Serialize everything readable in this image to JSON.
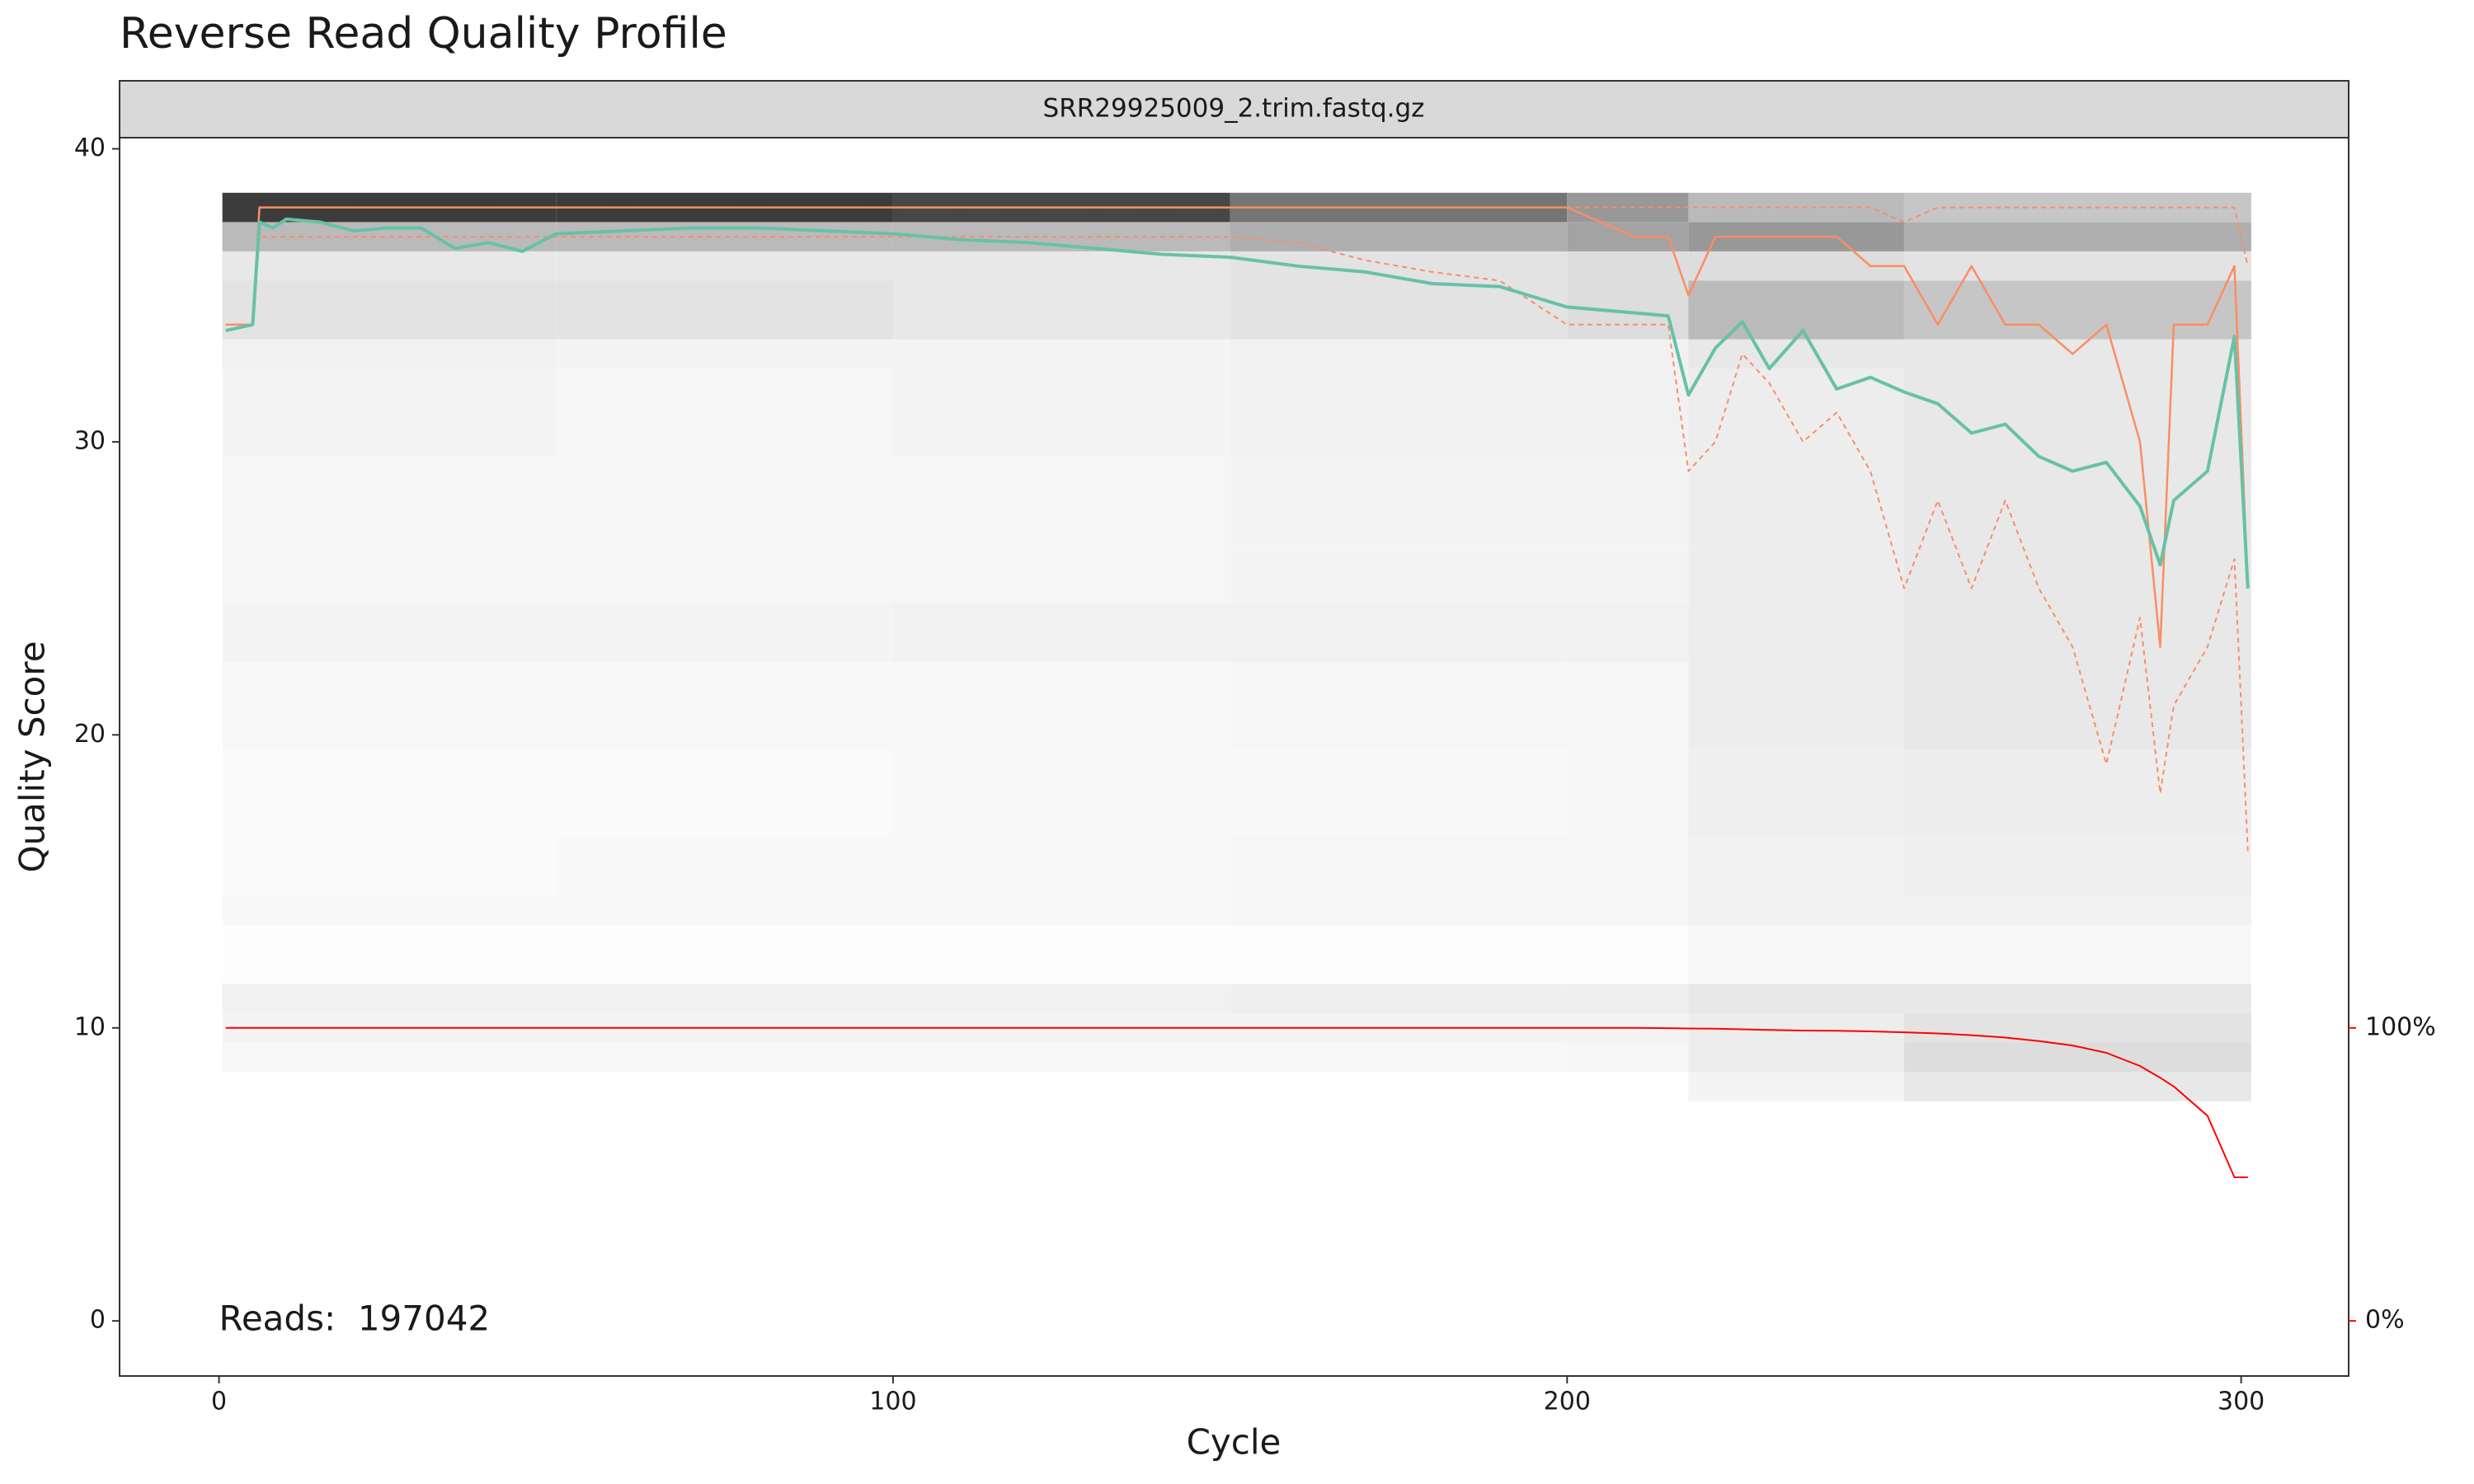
{
  "chart_data": {
    "type": "quality-profile",
    "title": "Reverse Read Quality Profile",
    "facet_label": "SRR29925009_2.trim.fastq.gz",
    "x_label": "Cycle",
    "y_label": "Quality Score",
    "annotation": "Reads:  197042",
    "annotation_color": "#ff0000",
    "xlim": [
      -14.75,
      315.95
    ],
    "ylim": [
      -1.88,
      40.38
    ],
    "y2lim": [
      -18.8,
      403.8
    ],
    "xticks": [
      0,
      100,
      200,
      300
    ],
    "yticks": [
      0,
      10,
      20,
      30,
      40
    ],
    "y2ticks": [
      {
        "value": 0,
        "label": "0%"
      },
      {
        "value": 100,
        "label": "100%"
      }
    ],
    "y2_color": "#ff0000",
    "grid": false,
    "heatmap": {
      "cycle_edges": [
        0.5,
        50,
        100,
        150,
        200,
        218,
        250,
        301.5
      ],
      "quality_edges": [
        7.5,
        8.5,
        9.5,
        10.5,
        11.5,
        13.5,
        14.5,
        16.5,
        19.5,
        22.5,
        24.5,
        26.5,
        29.5,
        32.5,
        33.5,
        35.5,
        36.5,
        37.5,
        38.5
      ],
      "density": [
        [
          0,
          0,
          0,
          0,
          0,
          0.05,
          0.1
        ],
        [
          0.03,
          0.03,
          0.03,
          0.03,
          0.04,
          0.08,
          0.15
        ],
        [
          0.05,
          0.05,
          0.05,
          0.05,
          0.05,
          0.08,
          0.12
        ],
        [
          0.06,
          0.06,
          0.06,
          0.07,
          0.07,
          0.1,
          0.1
        ],
        [
          0.01,
          0.01,
          0.01,
          0.01,
          0.01,
          0.03,
          0.03
        ],
        [
          0.03,
          0.03,
          0.03,
          0.04,
          0.04,
          0.06,
          0.06
        ],
        [
          0.02,
          0.03,
          0.03,
          0.04,
          0.04,
          0.06,
          0.07
        ],
        [
          0.02,
          0.02,
          0.03,
          0.03,
          0.04,
          0.07,
          0.08
        ],
        [
          0.03,
          0.03,
          0.03,
          0.04,
          0.04,
          0.08,
          0.1
        ],
        [
          0.05,
          0.05,
          0.06,
          0.06,
          0.06,
          0.08,
          0.1
        ],
        [
          0.04,
          0.04,
          0.04,
          0.05,
          0.05,
          0.08,
          0.1
        ],
        [
          0.04,
          0.04,
          0.04,
          0.05,
          0.05,
          0.08,
          0.1
        ],
        [
          0.05,
          0.04,
          0.05,
          0.06,
          0.06,
          0.08,
          0.1
        ],
        [
          0.06,
          0.05,
          0.05,
          0.06,
          0.06,
          0.1,
          0.1
        ],
        [
          0.12,
          0.12,
          0.1,
          0.12,
          0.15,
          0.3,
          0.25
        ],
        [
          0.1,
          0.1,
          0.1,
          0.12,
          0.15,
          0.15,
          0.12
        ],
        [
          0.3,
          0.3,
          0.3,
          0.35,
          0.4,
          0.45,
          0.35
        ],
        [
          0.85,
          0.85,
          0.8,
          0.6,
          0.45,
          0.3,
          0.25
        ]
      ]
    },
    "x": [
      1,
      5,
      6,
      8,
      10,
      15,
      20,
      25,
      30,
      35,
      40,
      45,
      50,
      60,
      70,
      80,
      90,
      100,
      110,
      120,
      130,
      140,
      150,
      160,
      170,
      180,
      190,
      200,
      210,
      215,
      218,
      222,
      226,
      230,
      235,
      240,
      245,
      250,
      255,
      260,
      265,
      270,
      275,
      280,
      285,
      288,
      290,
      295,
      299,
      301
    ],
    "series": [
      {
        "color": "#fc8d62",
        "dash": true,
        "width": 2,
        "values": [
          34,
          34,
          38,
          38,
          38,
          38,
          38,
          38,
          38,
          38,
          38,
          38,
          38,
          38,
          38,
          38,
          38,
          38,
          38,
          38,
          38,
          38,
          38,
          38,
          38,
          38,
          38,
          38,
          38,
          38,
          38,
          38,
          38,
          38,
          38,
          38,
          38,
          37.5,
          38,
          38,
          38,
          38,
          38,
          38,
          38,
          38,
          38,
          38,
          38,
          36
        ]
      },
      {
        "color": "#fc8d62",
        "dash": true,
        "width": 2,
        "values": [
          34,
          34,
          37,
          37,
          37,
          37,
          37,
          37,
          37,
          37,
          37,
          37,
          37,
          37,
          37,
          37,
          37,
          37,
          37,
          37,
          37,
          37,
          37,
          36.8,
          36.2,
          35.8,
          35.5,
          34,
          34,
          34,
          29,
          30,
          33,
          32,
          30,
          31,
          29,
          25,
          28,
          25,
          28,
          25,
          23,
          19,
          24,
          18,
          21,
          23,
          26,
          16
        ]
      },
      {
        "color": "#fc8d62",
        "dash": false,
        "width": 2.5,
        "values": [
          34,
          34,
          38,
          38,
          38,
          38,
          38,
          38,
          38,
          38,
          38,
          38,
          38,
          38,
          38,
          38,
          38,
          38,
          38,
          38,
          38,
          38,
          38,
          38,
          38,
          38,
          38,
          38,
          37,
          37,
          35,
          37,
          37,
          37,
          37,
          37,
          36,
          36,
          34,
          36,
          34,
          34,
          33,
          34,
          30,
          23,
          34,
          34,
          36,
          25
        ]
      },
      {
        "color": "#66c2a5",
        "dash": false,
        "width": 4,
        "values": [
          33.8,
          34,
          37.5,
          37.3,
          37.6,
          37.5,
          37.2,
          37.3,
          37.3,
          36.6,
          36.8,
          36.5,
          37.1,
          37.2,
          37.3,
          37.3,
          37.2,
          37.1,
          36.9,
          36.8,
          36.6,
          36.4,
          36.3,
          36,
          35.8,
          35.4,
          35.3,
          34.6,
          34.4,
          34.3,
          31.6,
          33.2,
          34.1,
          32.5,
          33.8,
          31.8,
          32.2,
          31.7,
          31.3,
          30.3,
          30.6,
          29.5,
          29,
          29.3,
          27.8,
          25.8,
          28,
          29,
          33.6,
          25
        ]
      },
      {
        "color": "#ff0000",
        "dash": false,
        "width": 2,
        "axis": "y2",
        "values": [
          100,
          100,
          100,
          100,
          100,
          100,
          100,
          100,
          100,
          100,
          100,
          100,
          100,
          100,
          100,
          100,
          100,
          100,
          100,
          100,
          100,
          100,
          100,
          100,
          100,
          100,
          100,
          100,
          100,
          99.9,
          99.8,
          99.7,
          99.5,
          99.3,
          99.1,
          99,
          98.8,
          98.5,
          98.1,
          97.5,
          96.7,
          95.5,
          94,
          91.5,
          87,
          83,
          80,
          70,
          49,
          49
        ]
      }
    ]
  }
}
